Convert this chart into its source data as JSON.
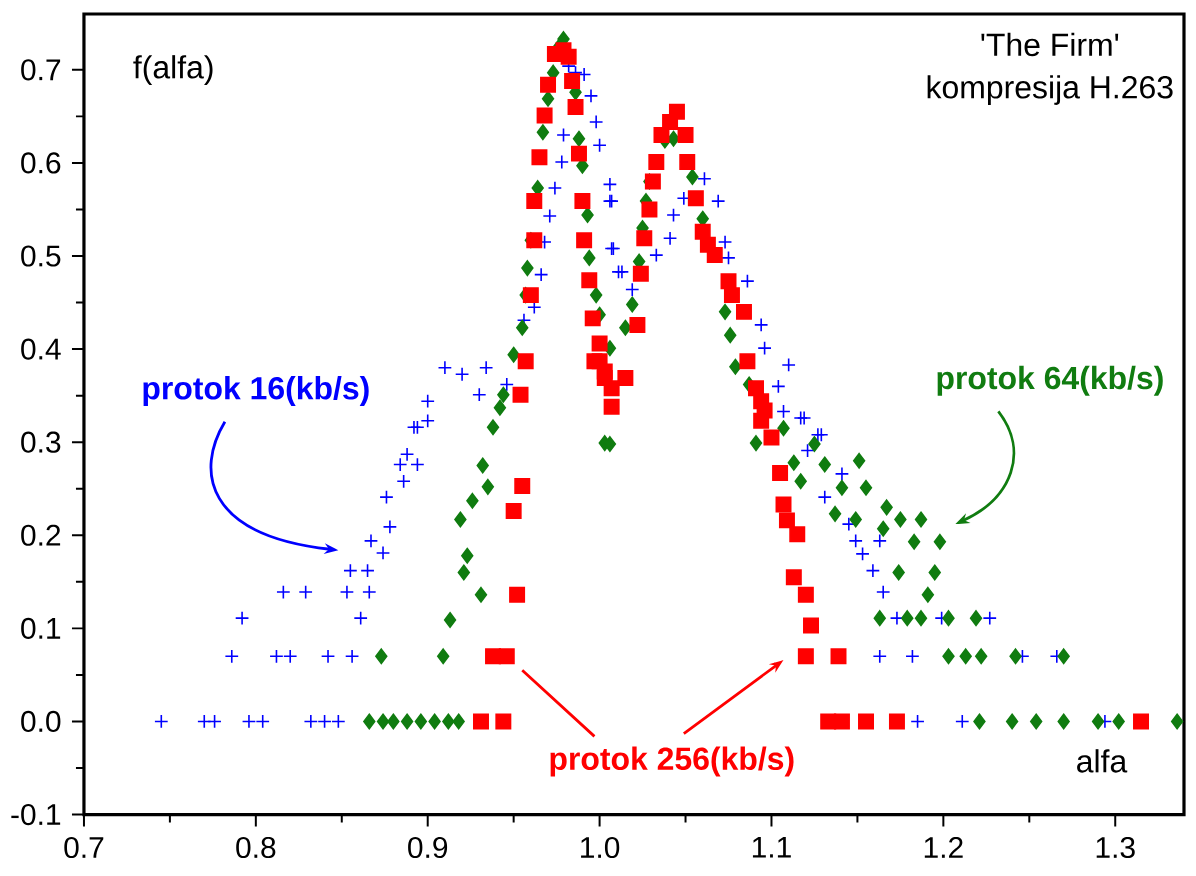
{
  "chart_data": {
    "type": "scatter",
    "title": "'The Firm'",
    "subtitle": "kompresija H.263",
    "xlabel": "alfa",
    "ylabel": "f(alfa)",
    "xlim": [
      0.7,
      1.34
    ],
    "ylim": [
      -0.1,
      0.76
    ],
    "xticks": [
      0.7,
      0.8,
      0.9,
      {
        "value": 1.0,
        "label": "1.0"
      },
      1.1,
      1.2,
      1.3
    ],
    "yticks": [
      -0.1,
      {
        "value": 0.0,
        "label": "0.0"
      },
      0.1,
      0.2,
      0.3,
      0.4,
      0.5,
      0.6,
      0.7
    ],
    "series": [
      {
        "name": "protok 16(kb/s)",
        "color": "#0000ff",
        "marker": "cross",
        "x": [
          0.745,
          0.77,
          0.776,
          0.796,
          0.804,
          0.832,
          0.84,
          0.848,
          1.185,
          1.211,
          1.294,
          0.786,
          0.812,
          0.82,
          0.842,
          0.856,
          1.163,
          1.182,
          1.246,
          1.266,
          0.792,
          0.861,
          0.816,
          0.829,
          0.853,
          0.866,
          1.173,
          1.199,
          1.227,
          0.855,
          0.865,
          0.874,
          0.867,
          0.878,
          0.876,
          0.886,
          0.884,
          0.894,
          0.888,
          0.894,
          0.9,
          0.892,
          0.9,
          0.91,
          0.92,
          0.93,
          0.934,
          0.946,
          0.956,
          0.962,
          0.966,
          0.968,
          0.971,
          0.974,
          0.978,
          0.979,
          0.982,
          0.986,
          0.991,
          0.995,
          0.998,
          1.0,
          1.006,
          1.008,
          1.011,
          1.006,
          1.007,
          1.007,
          1.013,
          1.019,
          1.033,
          1.041,
          1.043,
          1.049,
          1.061,
          1.069,
          1.073,
          1.075,
          1.086,
          1.094,
          1.096,
          1.11,
          1.104,
          1.117,
          1.129,
          1.107,
          1.119,
          1.127,
          1.121,
          1.141,
          1.131,
          1.145,
          1.149,
          1.163,
          1.153,
          1.159,
          1.165
        ],
        "values": [
          0,
          0,
          0,
          0,
          0,
          0,
          0,
          0,
          0,
          0,
          0,
          0.07,
          0.07,
          0.07,
          0.07,
          0.07,
          0.07,
          0.07,
          0.07,
          0.07,
          0.111,
          0.111,
          0.139,
          0.139,
          0.139,
          0.139,
          0.111,
          0.111,
          0.111,
          0.162,
          0.162,
          0.181,
          0.194,
          0.209,
          0.241,
          0.258,
          0.276,
          0.276,
          0.287,
          0.316,
          0.323,
          0.316,
          0.344,
          0.38,
          0.373,
          0.351,
          0.38,
          0.362,
          0.431,
          0.445,
          0.48,
          0.515,
          0.543,
          0.573,
          0.601,
          0.63,
          0.704,
          0.697,
          0.695,
          0.672,
          0.644,
          0.619,
          0.559,
          0.508,
          0.483,
          0.577,
          0.559,
          0.508,
          0.483,
          0.464,
          0.501,
          0.519,
          0.544,
          0.562,
          0.583,
          0.559,
          0.515,
          0.498,
          0.473,
          0.426,
          0.401,
          0.383,
          0.36,
          0.326,
          0.308,
          0.333,
          0.326,
          0.308,
          0.291,
          0.266,
          0.241,
          0.212,
          0.194,
          0.194,
          0.18,
          0.162,
          0.139
        ]
      },
      {
        "name": "protok 64(kb/s)",
        "color": "#107c10",
        "marker": "diamond",
        "x": [
          0.866,
          0.874,
          0.88,
          0.888,
          0.896,
          0.904,
          0.912,
          0.918,
          1.221,
          1.24,
          1.254,
          1.27,
          1.29,
          1.302,
          1.336,
          0.873,
          0.909,
          1.203,
          1.213,
          1.222,
          1.242,
          1.27,
          1.163,
          1.179,
          1.187,
          1.203,
          1.219,
          0.913,
          0.931,
          0.921,
          0.923,
          0.919,
          0.926,
          0.935,
          0.932,
          0.938,
          0.942,
          1.003,
          0.944,
          0.95,
          0.955,
          0.957,
          0.958,
          0.96,
          0.964,
          0.967,
          0.97,
          0.973,
          0.976,
          0.979,
          0.986,
          0.988,
          0.99,
          0.993,
          0.994,
          0.998,
          1.0,
          1.006,
          1.015,
          1.019,
          1.023,
          1.025,
          1.027,
          1.029,
          1.038,
          1.043,
          1.054,
          1.06,
          1.073,
          1.076,
          1.079,
          1.087,
          1.006,
          1.091,
          1.107,
          1.113,
          1.125,
          1.131,
          1.117,
          1.141,
          1.151,
          1.155,
          1.137,
          1.149,
          1.167,
          1.175,
          1.187,
          1.165,
          1.183,
          1.198,
          1.174,
          1.195,
          1.191
        ],
        "values": [
          0,
          0,
          0,
          0,
          0,
          0,
          0,
          0,
          0,
          0,
          0,
          0,
          0,
          0,
          0,
          0.07,
          0.07,
          0.07,
          0.07,
          0.07,
          0.07,
          0.07,
          0.111,
          0.111,
          0.111,
          0.111,
          0.111,
          0.109,
          0.136,
          0.16,
          0.178,
          0.217,
          0.237,
          0.252,
          0.275,
          0.316,
          0.337,
          0.299,
          0.351,
          0.394,
          0.423,
          0.458,
          0.487,
          0.517,
          0.573,
          0.633,
          0.669,
          0.697,
          0.724,
          0.733,
          0.676,
          0.626,
          0.597,
          0.544,
          0.498,
          0.458,
          0.437,
          0.401,
          0.423,
          0.448,
          0.494,
          0.53,
          0.559,
          0.58,
          0.624,
          0.626,
          0.585,
          0.54,
          0.44,
          0.415,
          0.381,
          0.362,
          0.298,
          0.299,
          0.315,
          0.278,
          0.298,
          0.276,
          0.258,
          0.251,
          0.28,
          0.251,
          0.223,
          0.217,
          0.23,
          0.217,
          0.217,
          0.207,
          0.193,
          0.193,
          0.16,
          0.16,
          0.136
        ]
      },
      {
        "name": "protok 256(kb/s)",
        "color": "#ff0000",
        "marker": "square",
        "x": [
          0.931,
          0.944,
          1.133,
          1.141,
          1.155,
          1.173,
          1.315,
          0.938,
          0.946,
          1.12,
          1.139,
          0.952,
          0.95,
          0.955,
          0.954,
          0.957,
          0.96,
          0.962,
          0.962,
          0.965,
          0.968,
          0.97,
          0.974,
          0.979,
          0.982,
          0.984,
          0.986,
          0.988,
          0.99,
          0.991,
          0.994,
          0.996,
          1.0,
          1.003,
          1.007,
          0.997,
          1.003,
          1.015,
          1.007,
          1.0,
          1.022,
          1.024,
          1.026,
          1.029,
          1.031,
          1.033,
          1.036,
          1.041,
          1.045,
          1.05,
          1.051,
          1.056,
          1.06,
          1.063,
          1.067,
          1.075,
          1.077,
          1.084,
          1.086,
          1.091,
          1.094,
          1.094,
          1.096,
          1.1,
          1.105,
          1.107,
          1.109,
          1.115,
          1.113,
          1.12,
          1.123
        ],
        "values": [
          0,
          0,
          0,
          0,
          0,
          0,
          0,
          0.07,
          0.07,
          0.07,
          0.07,
          0.136,
          0.226,
          0.253,
          0.351,
          0.387,
          0.458,
          0.517,
          0.559,
          0.606,
          0.651,
          0.684,
          0.717,
          0.721,
          0.714,
          0.688,
          0.66,
          0.61,
          0.559,
          0.517,
          0.474,
          0.433,
          0.387,
          0.369,
          0.358,
          0.387,
          0.376,
          0.369,
          0.338,
          0.406,
          0.426,
          0.481,
          0.519,
          0.55,
          0.58,
          0.601,
          0.63,
          0.644,
          0.655,
          0.63,
          0.601,
          0.562,
          0.526,
          0.512,
          0.501,
          0.473,
          0.458,
          0.44,
          0.387,
          0.358,
          0.344,
          0.323,
          0.334,
          0.305,
          0.267,
          0.233,
          0.216,
          0.201,
          0.155,
          0.136,
          0.103
        ]
      }
    ]
  }
}
